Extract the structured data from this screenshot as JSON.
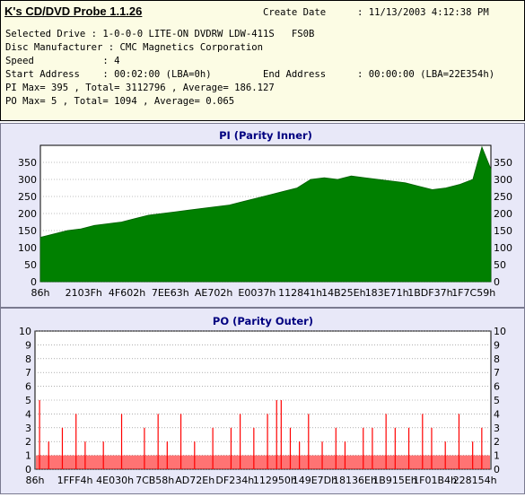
{
  "app": {
    "title": "K's CD/DVD Probe 1.1.26"
  },
  "info": {
    "create_date_label": "Create Date",
    "create_date_value": ": 11/13/2003 4:12:38 PM",
    "drive_line": "Selected Drive : 1-0-0-0 LITE-ON DVDRW LDW-411S   FS0B",
    "manufacturer_line": "Disc Manufacturer : CMC Magnetics Corporation",
    "speed_line": "Speed            : 4",
    "start_line": "Start Address    : 00:02:00 (LBA=0h)",
    "end_label": "End Address",
    "end_value": ": 00:00:00 (LBA=22E354h)",
    "pi_line": "PI Max= 395 , Total= 3112796 , Average= 186.127",
    "po_line": "PO Max= 5 , Total= 1094 , Average= 0.065"
  },
  "chart_data": [
    {
      "type": "area",
      "title": "PI (Parity Inner)",
      "color": "#008000",
      "x_tick_labels": [
        "86h",
        "2103Fh",
        "4F602h",
        "7EE63h",
        "AE702h",
        "E0037h",
        "112841h",
        "14B25Eh",
        "183E71h",
        "1BDF37h",
        "1F7C59h"
      ],
      "ylim": [
        0,
        400
      ],
      "y_ticks": [
        0,
        50,
        100,
        150,
        200,
        250,
        300,
        350
      ],
      "grid": true,
      "x": [
        0,
        0.03,
        0.06,
        0.09,
        0.12,
        0.15,
        0.18,
        0.21,
        0.24,
        0.27,
        0.3,
        0.33,
        0.36,
        0.39,
        0.42,
        0.45,
        0.48,
        0.51,
        0.54,
        0.57,
        0.6,
        0.63,
        0.66,
        0.69,
        0.72,
        0.75,
        0.78,
        0.81,
        0.84,
        0.87,
        0.9,
        0.93,
        0.96,
        0.98,
        1.0
      ],
      "values": [
        130,
        140,
        150,
        155,
        165,
        170,
        175,
        185,
        195,
        200,
        205,
        210,
        215,
        220,
        225,
        235,
        245,
        255,
        265,
        275,
        300,
        305,
        300,
        310,
        305,
        300,
        295,
        290,
        280,
        270,
        275,
        285,
        300,
        395,
        330
      ]
    },
    {
      "type": "bar",
      "title": "PO (Parity Outer)",
      "color": "#ff0000",
      "x_tick_labels": [
        "86h",
        "1FFF4h",
        "4E030h",
        "7CB58h",
        "AD72Eh",
        "DF234h",
        "112950h",
        "149E7Dh",
        "18136Eh",
        "1B915Eh",
        "1F01B4h",
        "228154h"
      ],
      "ylim": [
        0,
        10
      ],
      "y_ticks": [
        0,
        1,
        2,
        3,
        4,
        5,
        6,
        7,
        8,
        9,
        10
      ],
      "grid": true,
      "spikes": [
        {
          "x": 0.01,
          "v": 5
        },
        {
          "x": 0.03,
          "v": 2
        },
        {
          "x": 0.06,
          "v": 3
        },
        {
          "x": 0.09,
          "v": 4
        },
        {
          "x": 0.11,
          "v": 2
        },
        {
          "x": 0.15,
          "v": 2
        },
        {
          "x": 0.19,
          "v": 4
        },
        {
          "x": 0.24,
          "v": 3
        },
        {
          "x": 0.27,
          "v": 4
        },
        {
          "x": 0.29,
          "v": 2
        },
        {
          "x": 0.32,
          "v": 4
        },
        {
          "x": 0.35,
          "v": 2
        },
        {
          "x": 0.39,
          "v": 3
        },
        {
          "x": 0.43,
          "v": 3
        },
        {
          "x": 0.45,
          "v": 4
        },
        {
          "x": 0.48,
          "v": 3
        },
        {
          "x": 0.51,
          "v": 4
        },
        {
          "x": 0.53,
          "v": 5
        },
        {
          "x": 0.54,
          "v": 5
        },
        {
          "x": 0.56,
          "v": 3
        },
        {
          "x": 0.58,
          "v": 2
        },
        {
          "x": 0.6,
          "v": 4
        },
        {
          "x": 0.63,
          "v": 2
        },
        {
          "x": 0.66,
          "v": 3
        },
        {
          "x": 0.68,
          "v": 2
        },
        {
          "x": 0.72,
          "v": 3
        },
        {
          "x": 0.74,
          "v": 3
        },
        {
          "x": 0.77,
          "v": 4
        },
        {
          "x": 0.79,
          "v": 3
        },
        {
          "x": 0.82,
          "v": 3
        },
        {
          "x": 0.85,
          "v": 4
        },
        {
          "x": 0.87,
          "v": 3
        },
        {
          "x": 0.9,
          "v": 2
        },
        {
          "x": 0.93,
          "v": 4
        },
        {
          "x": 0.96,
          "v": 2
        },
        {
          "x": 0.98,
          "v": 3
        }
      ],
      "baseline_level": 1
    }
  ]
}
